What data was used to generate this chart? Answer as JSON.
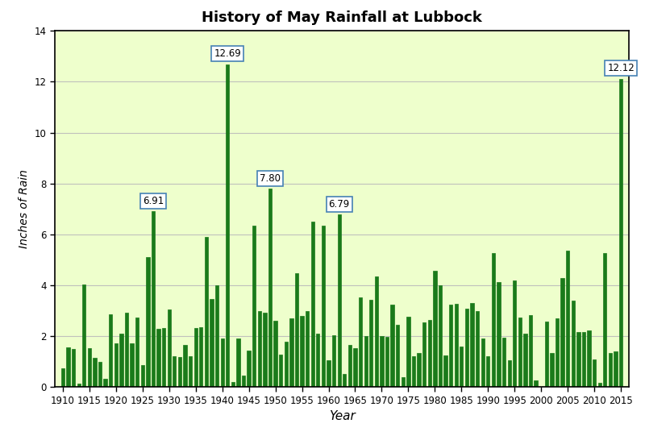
{
  "title": "History of May Rainfall at Lubbock",
  "xlabel": "Year",
  "ylabel": "Inches of Rain",
  "ylim": [
    0,
    14
  ],
  "xlim": [
    1908.5,
    2016.5
  ],
  "yticks": [
    0,
    2,
    4,
    6,
    8,
    10,
    12,
    14
  ],
  "xticks": [
    1910,
    1915,
    1920,
    1925,
    1930,
    1935,
    1940,
    1945,
    1950,
    1955,
    1960,
    1965,
    1970,
    1975,
    1980,
    1985,
    1990,
    1995,
    2000,
    2005,
    2010,
    2015
  ],
  "bar_color": "#1a7a1a",
  "bar_edge_color": "#1a7a1a",
  "plot_bg_color": "#eeffcc",
  "fig_bg_color": "#ffffff",
  "grid_color": "#bbbbbb",
  "annotation_years": [
    1927,
    1941,
    1949,
    1962,
    2015
  ],
  "annotation_values": [
    6.91,
    12.69,
    7.8,
    6.79,
    12.12
  ],
  "data": {
    "1910": 0.73,
    "1911": 1.56,
    "1912": 1.49,
    "1913": 0.14,
    "1914": 4.02,
    "1915": 1.52,
    "1916": 1.15,
    "1917": 1.0,
    "1918": 0.32,
    "1919": 2.86,
    "1920": 1.72,
    "1921": 2.1,
    "1922": 2.94,
    "1923": 1.73,
    "1924": 2.75,
    "1925": 0.88,
    "1926": 5.11,
    "1927": 6.91,
    "1928": 2.28,
    "1929": 2.34,
    "1930": 3.06,
    "1931": 1.23,
    "1932": 1.18,
    "1933": 1.66,
    "1934": 1.22,
    "1935": 2.32,
    "1936": 2.36,
    "1937": 5.9,
    "1938": 3.48,
    "1939": 4.0,
    "1940": 1.93,
    "1941": 12.69,
    "1942": 0.22,
    "1943": 1.9,
    "1944": 0.46,
    "1945": 1.43,
    "1946": 6.36,
    "1947": 3.0,
    "1948": 2.92,
    "1949": 7.8,
    "1950": 2.62,
    "1951": 1.28,
    "1952": 1.8,
    "1953": 2.71,
    "1954": 4.49,
    "1955": 2.8,
    "1956": 3.0,
    "1957": 6.5,
    "1958": 2.1,
    "1959": 6.36,
    "1960": 1.05,
    "1961": 2.05,
    "1962": 6.79,
    "1963": 0.52,
    "1964": 1.65,
    "1965": 1.53,
    "1966": 3.53,
    "1967": 2.0,
    "1968": 3.43,
    "1969": 4.36,
    "1970": 2.01,
    "1971": 1.98,
    "1972": 3.25,
    "1973": 2.44,
    "1974": 0.38,
    "1975": 2.78,
    "1976": 1.23,
    "1977": 1.36,
    "1978": 2.56,
    "1979": 2.65,
    "1980": 4.56,
    "1981": 3.99,
    "1982": 1.25,
    "1983": 3.24,
    "1984": 3.27,
    "1985": 1.6,
    "1986": 3.08,
    "1987": 3.3,
    "1988": 2.98,
    "1989": 1.9,
    "1990": 1.22,
    "1991": 5.27,
    "1992": 4.14,
    "1993": 1.95,
    "1994": 1.06,
    "1995": 4.18,
    "1996": 2.73,
    "1997": 2.1,
    "1998": 2.82,
    "1999": 0.28,
    "2000": 0.03,
    "2001": 2.58,
    "2002": 1.34,
    "2003": 2.72,
    "2004": 4.28,
    "2005": 5.36,
    "2006": 3.39,
    "2007": 2.18,
    "2008": 2.18,
    "2009": 2.23,
    "2010": 1.09,
    "2011": 0.18,
    "2012": 5.28,
    "2013": 1.35,
    "2014": 1.42,
    "2015": 12.12
  }
}
